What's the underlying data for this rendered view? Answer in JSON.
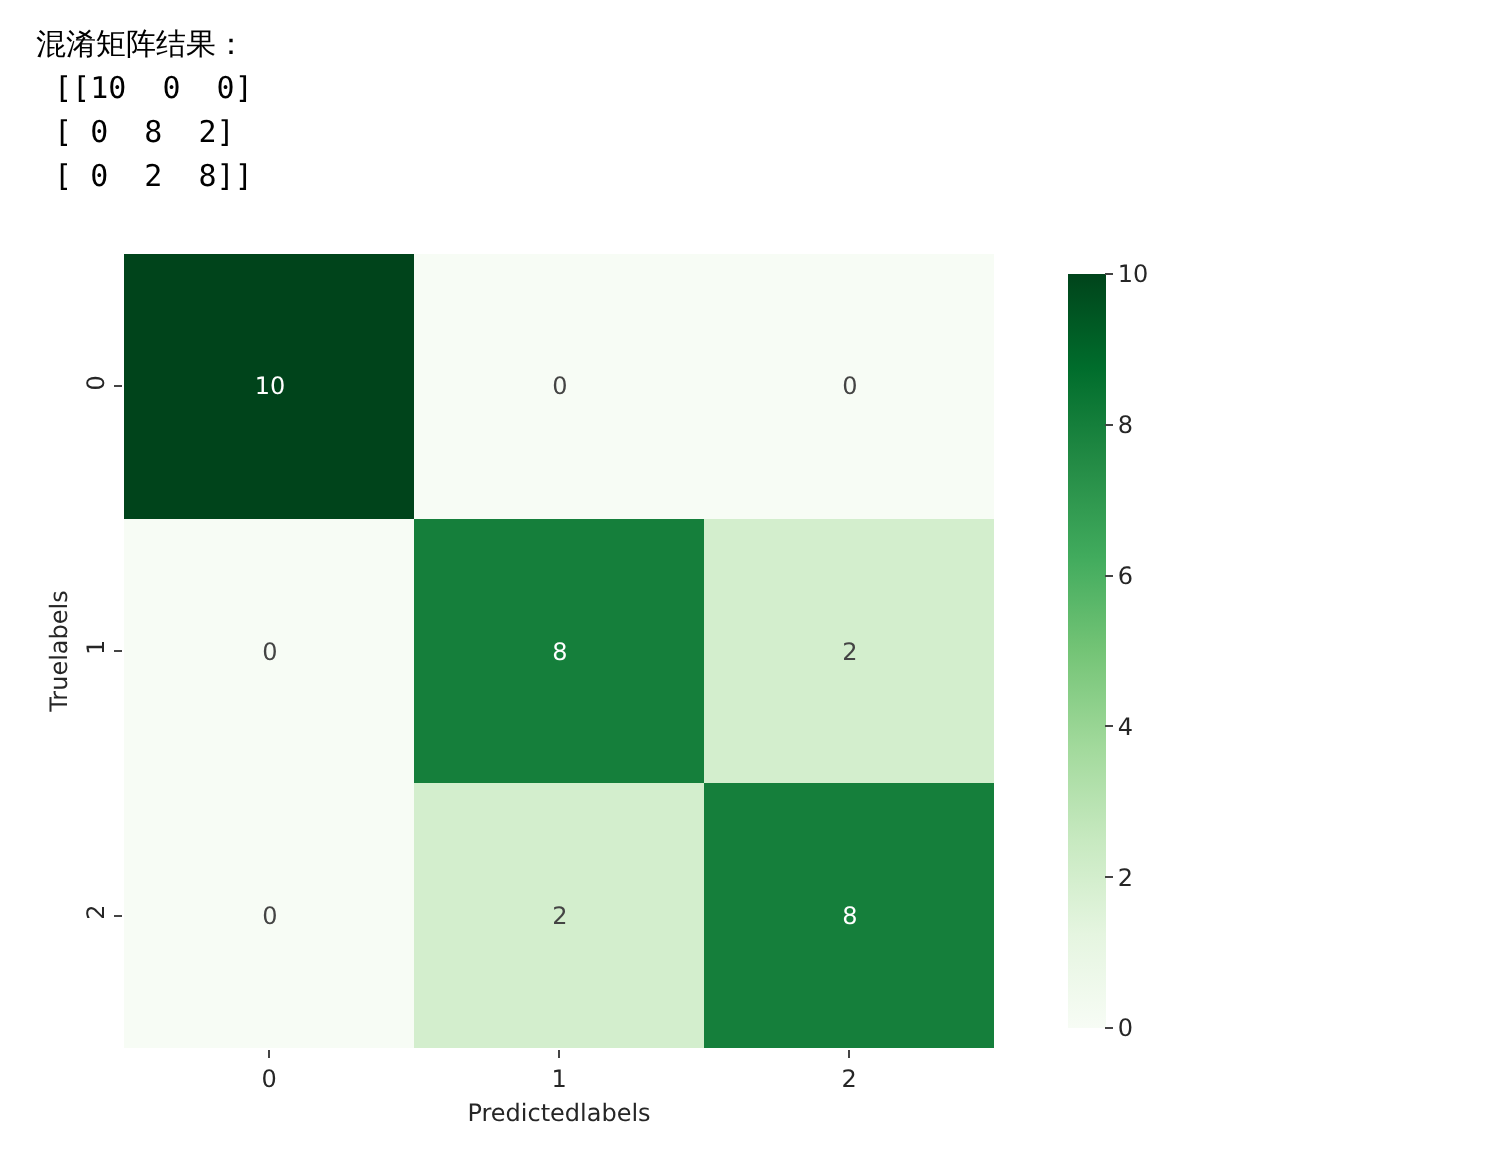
{
  "chart_data": {
    "type": "heatmap",
    "xlabel": "Predictedlabels",
    "ylabel": "Truelabels",
    "categories": [
      "0",
      "1",
      "2"
    ],
    "y_categories": [
      "0",
      "1",
      "2"
    ],
    "cells": [
      [
        10,
        0,
        0
      ],
      [
        0,
        8,
        2
      ],
      [
        0,
        2,
        8
      ]
    ],
    "data_labels": true,
    "clim": [
      0,
      10
    ],
    "cticks": [
      0,
      2,
      4,
      6,
      8,
      10
    ],
    "annotations": [
      "混淆矩阵结果：",
      " [[10  0  0]",
      " [ 0  8  2]",
      " [ 0  2  8]]"
    ]
  }
}
